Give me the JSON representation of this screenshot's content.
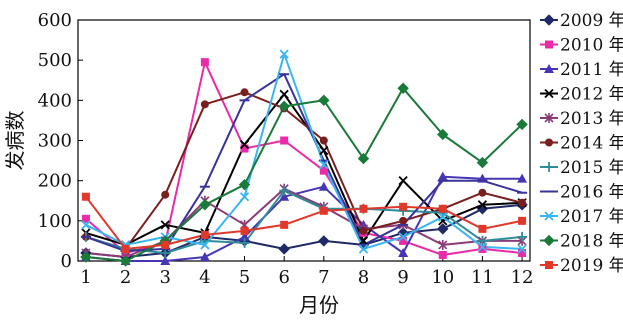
{
  "chart_data": {
    "type": "line",
    "title": "",
    "xlabel": "月份",
    "ylabel": "发病数",
    "categories": [
      "1",
      "2",
      "3",
      "4",
      "5",
      "6",
      "7",
      "8",
      "9",
      "10",
      "11",
      "12"
    ],
    "xlim": [
      0.8,
      12.2
    ],
    "ylim": [
      0,
      600
    ],
    "yticks": [
      0,
      100,
      200,
      300,
      400,
      500,
      600
    ],
    "grid": false,
    "legend_position": "right",
    "series": [
      {
        "name": "2009 年",
        "color": "#1f2a66",
        "marker": "diamond",
        "values": [
          20,
          10,
          20,
          60,
          50,
          30,
          50,
          40,
          70,
          80,
          130,
          140
        ]
      },
      {
        "name": "2010 年",
        "color": "#ea2aa6",
        "marker": "square",
        "values": [
          105,
          20,
          45,
          495,
          280,
          300,
          225,
          70,
          50,
          15,
          30,
          20
        ]
      },
      {
        "name": "2011 年",
        "color": "#4636b3",
        "marker": "triangle",
        "values": [
          10,
          0,
          0,
          10,
          60,
          160,
          185,
          90,
          20,
          210,
          205,
          205
        ]
      },
      {
        "name": "2012 年",
        "color": "#000000",
        "marker": "x",
        "values": [
          70,
          40,
          90,
          70,
          290,
          415,
          275,
          50,
          200,
          100,
          140,
          145
        ]
      },
      {
        "name": "2013 年",
        "color": "#8b3c78",
        "marker": "star",
        "values": [
          20,
          10,
          50,
          150,
          90,
          180,
          135,
          80,
          90,
          40,
          50,
          50
        ]
      },
      {
        "name": "2014 年",
        "color": "#7a1f1f",
        "marker": "circle",
        "values": [
          60,
          30,
          165,
          390,
          420,
          380,
          300,
          75,
          100,
          130,
          170,
          145
        ]
      },
      {
        "name": "2015 年",
        "color": "#2f8c98",
        "marker": "plus",
        "values": [
          60,
          30,
          20,
          50,
          45,
          175,
          130,
          130,
          125,
          120,
          50,
          60
        ]
      },
      {
        "name": "2016 年",
        "color": "#3a3399",
        "marker": "dash",
        "values": [
          60,
          25,
          30,
          185,
          400,
          465,
          250,
          40,
          90,
          200,
          200,
          170
        ]
      },
      {
        "name": "2017 年",
        "color": "#39b6ef",
        "marker": "x",
        "values": [
          90,
          40,
          60,
          40,
          160,
          515,
          240,
          30,
          60,
          110,
          35,
          30
        ]
      },
      {
        "name": "2018 年",
        "color": "#1a7a3a",
        "marker": "diamond",
        "values": [
          10,
          0,
          50,
          140,
          190,
          385,
          400,
          255,
          430,
          315,
          245,
          340
        ]
      },
      {
        "name": "2019 年",
        "color": "#e0382b",
        "marker": "square",
        "values": [
          160,
          30,
          40,
          65,
          75,
          90,
          125,
          130,
          135,
          130,
          80,
          100
        ]
      }
    ]
  }
}
